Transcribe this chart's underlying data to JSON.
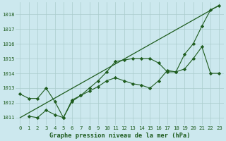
{
  "bg_color": "#cce8ee",
  "grid_color": "#aacccc",
  "line_color": "#1e5c1e",
  "xlabel": "Graphe pression niveau de la mer (hPa)",
  "xlim": [
    -0.5,
    23.5
  ],
  "ylim": [
    1010.5,
    1018.8
  ],
  "xticks": [
    0,
    1,
    2,
    3,
    4,
    5,
    6,
    7,
    8,
    9,
    10,
    11,
    12,
    13,
    14,
    15,
    16,
    17,
    18,
    19,
    20,
    21,
    22,
    23
  ],
  "yticks": [
    1011,
    1012,
    1013,
    1014,
    1015,
    1016,
    1017,
    1018
  ],
  "series1_x": [
    0,
    1,
    2,
    3,
    4,
    5,
    6,
    7,
    8,
    9,
    10,
    11,
    12,
    13,
    14,
    15,
    16,
    17,
    18,
    19,
    20,
    21,
    22,
    23
  ],
  "series1_y": [
    1012.6,
    1012.3,
    1012.3,
    1013.0,
    1012.1,
    1011.0,
    1012.2,
    1012.5,
    1013.0,
    1013.5,
    1014.1,
    1014.8,
    1014.9,
    1015.0,
    1015.0,
    1015.0,
    1014.7,
    1014.1,
    1014.1,
    1015.3,
    1016.0,
    1017.2,
    1018.3,
    1018.6
  ],
  "series2_x": [
    1,
    2,
    3,
    4,
    5,
    6,
    7,
    8,
    9,
    10,
    11,
    12,
    13,
    14,
    15,
    16,
    17,
    18,
    19,
    20,
    21,
    22,
    23
  ],
  "series2_y": [
    1011.1,
    1011.0,
    1011.5,
    1011.2,
    1011.0,
    1012.1,
    1012.5,
    1012.8,
    1013.1,
    1013.5,
    1013.7,
    1013.5,
    1013.3,
    1013.2,
    1013.0,
    1013.5,
    1014.2,
    1014.1,
    1014.3,
    1015.0,
    1015.8,
    1014.0,
    1014.0
  ],
  "series3_x": [
    0,
    23
  ],
  "series3_y": [
    1011.0,
    1018.6
  ],
  "tick_fontsize": 5.2,
  "label_fontsize": 6.2
}
